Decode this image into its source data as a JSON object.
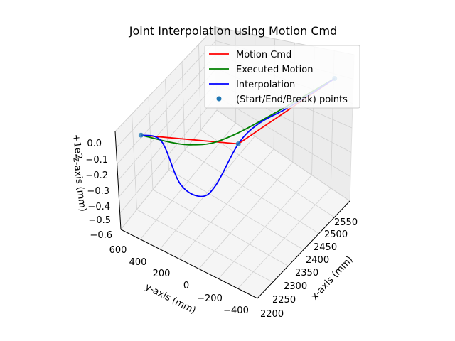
{
  "chart_data": {
    "type": "line",
    "projection": "3d",
    "title": "Joint Interpolation using Motion Cmd",
    "xlabel": "x-axis (mm)",
    "ylabel": "y-axis (mm)",
    "zlabel": "z-axis (mm)",
    "z_offset_label": "+1e2",
    "xlim": [
      2200,
      2550
    ],
    "ylim": [
      -450,
      600
    ],
    "zlim": [
      -0.6,
      0.0
    ],
    "x_ticks": [
      "2200",
      "2250",
      "2300",
      "2350",
      "2400",
      "2450",
      "2500",
      "2550"
    ],
    "y_ticks": [
      "−400",
      "−200",
      "0",
      "200",
      "400",
      "600"
    ],
    "z_ticks": [
      "0.0",
      "−0.1",
      "−0.2",
      "−0.3",
      "−0.4",
      "−0.5",
      "−0.6"
    ],
    "grid": true,
    "legend_position": "top-right",
    "series": [
      {
        "name": "Motion Cmd",
        "color": "#ff0000",
        "points": [
          [
            2218,
            450,
            0.0
          ],
          [
            2385,
            72,
            -0.25
          ],
          [
            2540,
            -360,
            0.0
          ]
        ]
      },
      {
        "name": "Executed Motion",
        "color": "#008000",
        "points": [
          [
            2218,
            450,
            0.0
          ],
          [
            2300,
            250,
            -0.15
          ],
          [
            2380,
            75,
            -0.18
          ],
          [
            2540,
            -360,
            0.0
          ]
        ]
      },
      {
        "name": "Interpolation",
        "color": "#0000ff",
        "points": [
          [
            2218,
            450,
            0.0
          ],
          [
            2260,
            390,
            -0.1
          ],
          [
            2290,
            330,
            -0.4
          ],
          [
            2325,
            255,
            -0.52
          ],
          [
            2350,
            190,
            -0.48
          ],
          [
            2385,
            72,
            -0.25
          ],
          [
            2420,
            -10,
            -0.17
          ],
          [
            2460,
            -140,
            -0.11
          ],
          [
            2500,
            -260,
            -0.05
          ],
          [
            2540,
            -360,
            0.0
          ]
        ]
      },
      {
        "name": "(Start/End/Break) points",
        "color": "#1f77b4",
        "marker": "point",
        "points": [
          [
            2218,
            450,
            0.0
          ],
          [
            2385,
            72,
            -0.25
          ],
          [
            2540,
            -360,
            0.0
          ]
        ]
      }
    ]
  }
}
